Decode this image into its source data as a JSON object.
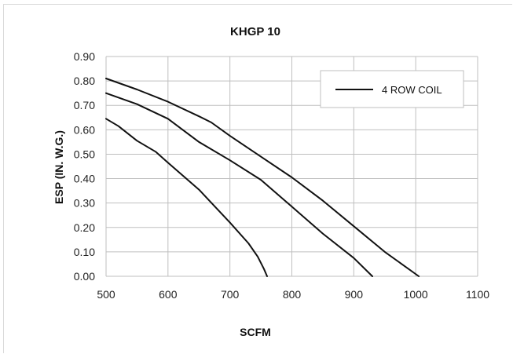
{
  "chart_data": {
    "type": "line",
    "title": "KHGP 10",
    "xlabel": "SCFM",
    "ylabel": "ESP (IN. W.G.)",
    "xlim": [
      500,
      1100
    ],
    "ylim": [
      0,
      0.9
    ],
    "x_ticks": [
      "500",
      "600",
      "700",
      "800",
      "900",
      "1000",
      "1100"
    ],
    "y_ticks": [
      "0.00",
      "0.10",
      "0.20",
      "0.30",
      "0.40",
      "0.50",
      "0.60",
      "0.70",
      "0.80",
      "0.90"
    ],
    "grid": true,
    "legend": {
      "position": "top-right",
      "entries": [
        "4 ROW COIL"
      ]
    },
    "line_color": "#111111",
    "series": [
      {
        "name": "4 ROW COIL",
        "points": [
          [
            500,
            0.81
          ],
          [
            550,
            0.765
          ],
          [
            600,
            0.715
          ],
          [
            650,
            0.655
          ],
          [
            670,
            0.63
          ],
          [
            700,
            0.575
          ],
          [
            750,
            0.49
          ],
          [
            800,
            0.405
          ],
          [
            850,
            0.31
          ],
          [
            900,
            0.205
          ],
          [
            950,
            0.1
          ],
          [
            1005,
            0.0
          ]
        ]
      },
      {
        "points": [
          [
            500,
            0.75
          ],
          [
            550,
            0.705
          ],
          [
            600,
            0.645
          ],
          [
            650,
            0.55
          ],
          [
            700,
            0.475
          ],
          [
            750,
            0.395
          ],
          [
            800,
            0.285
          ],
          [
            850,
            0.175
          ],
          [
            900,
            0.075
          ],
          [
            930,
            0.0
          ]
        ]
      },
      {
        "points": [
          [
            500,
            0.645
          ],
          [
            520,
            0.615
          ],
          [
            550,
            0.555
          ],
          [
            580,
            0.51
          ],
          [
            600,
            0.465
          ],
          [
            650,
            0.355
          ],
          [
            700,
            0.22
          ],
          [
            730,
            0.135
          ],
          [
            745,
            0.08
          ],
          [
            755,
            0.03
          ],
          [
            760,
            0.0
          ]
        ]
      }
    ]
  }
}
